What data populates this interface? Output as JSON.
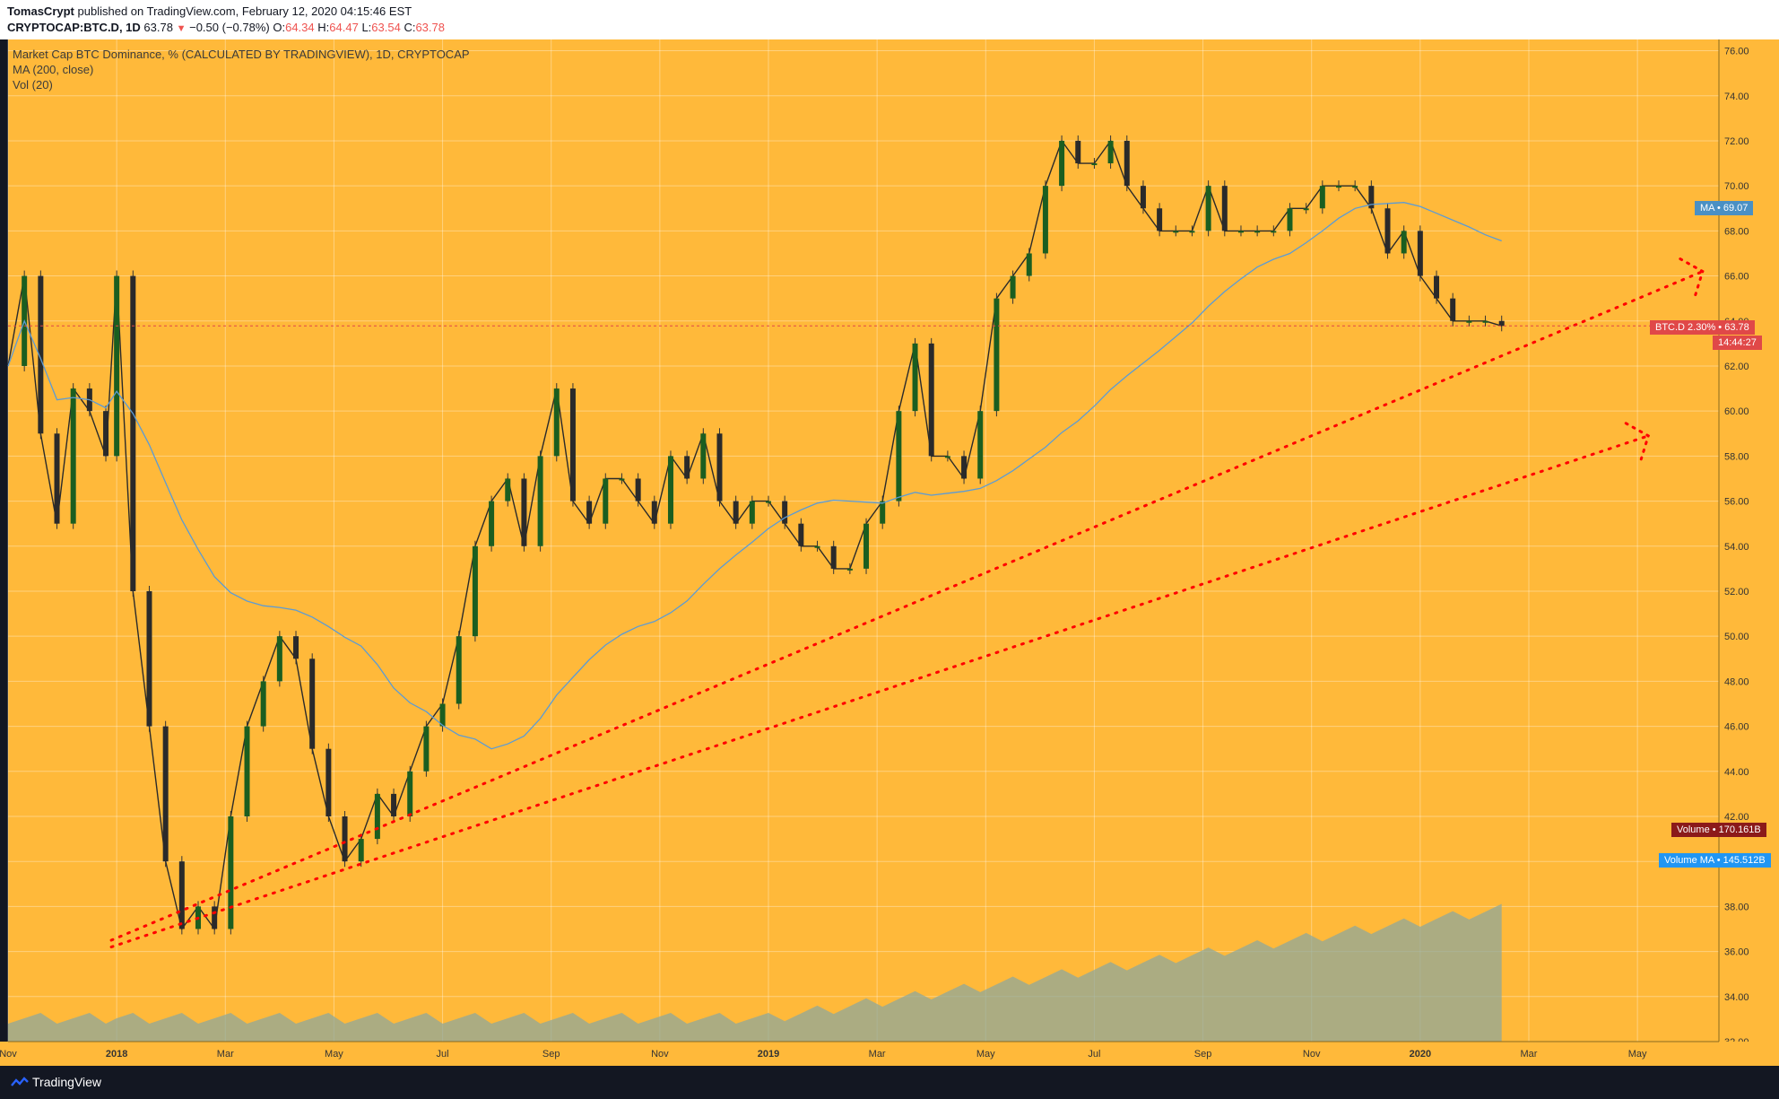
{
  "header": {
    "author": "TomasCrypt",
    "published": "published on TradingView.com, February 12, 2020 04:15:46 EST",
    "symbol": "CRYPTOCAP:BTC.D, 1D",
    "last": "63.78",
    "change": "−0.50 (−0.78%)",
    "o_label": "O:",
    "o_val": "64.34",
    "h_label": "H:",
    "h_val": "64.47",
    "l_label": "L:",
    "l_val": "63.54",
    "c_label": "C:",
    "c_val": "63.78"
  },
  "legend": {
    "line1": "Market Cap BTC Dominance, % (CALCULATED BY TRADINGVIEW), 1D, CRYPTOCAP",
    "line2": "MA (200, close)",
    "line3": "Vol (20)"
  },
  "tags": {
    "ma": "MA • 69.07",
    "btcd": "BTC.D 2.30% • 63.78",
    "countdown": "14:44:27",
    "volume": "Volume • 170.161B",
    "volume_ma": "Volume MA • 145.512B"
  },
  "footer": {
    "brand": "TradingView"
  },
  "colors": {
    "background": "#ffb93a",
    "up": "#1b5e20",
    "down": "#2a2a2a",
    "ma": "#5b9bd5",
    "trend": "#ff0000",
    "volume": "#8fa89b"
  },
  "chart_data": {
    "type": "line",
    "title": "Market Cap BTC Dominance, % (CALCULATED BY TRADINGVIEW), 1D, CRYPTOCAP",
    "ylim": [
      32,
      76.5
    ],
    "y_ticks": [
      "76.00",
      "74.00",
      "72.00",
      "70.00",
      "68.00",
      "66.00",
      "64.00",
      "62.00",
      "60.00",
      "58.00",
      "56.00",
      "54.00",
      "52.00",
      "50.00",
      "48.00",
      "46.00",
      "44.00",
      "42.00",
      "40.00",
      "38.00",
      "36.00",
      "34.00",
      "32.00"
    ],
    "x_ticks": [
      "Nov",
      "2018",
      "Mar",
      "May",
      "Jul",
      "Sep",
      "Nov",
      "2019",
      "Mar",
      "May",
      "Jul",
      "Sep",
      "Nov",
      "2020",
      "Mar",
      "May"
    ],
    "x_tick_months": [
      0,
      2,
      4,
      6,
      8,
      10,
      12,
      14,
      16,
      18,
      20,
      22,
      24,
      26,
      28,
      30
    ],
    "x_month_range": [
      0,
      31.5
    ],
    "series": [
      {
        "values_month": [
          0,
          0.3,
          0.6,
          0.9,
          1.2,
          1.5,
          1.8,
          2.0,
          2.3,
          2.6,
          2.9,
          3.2,
          3.5,
          3.8,
          4.1,
          4.4,
          4.7,
          5.0,
          5.3,
          5.6,
          5.9,
          6.2,
          6.5,
          6.8,
          7.1,
          7.4,
          7.7,
          8.0,
          8.3,
          8.6,
          8.9,
          9.2,
          9.5,
          9.8,
          10.1,
          10.4,
          10.7,
          11.0,
          11.3,
          11.6,
          11.9,
          12.2,
          12.5,
          12.8,
          13.1,
          13.4,
          13.7,
          14.0,
          14.3,
          14.6,
          14.9,
          15.2,
          15.5,
          15.8,
          16.1,
          16.4,
          16.7,
          17.0,
          17.3,
          17.6,
          17.9,
          18.2,
          18.5,
          18.8,
          19.1,
          19.4,
          19.7,
          20.0,
          20.3,
          20.6,
          20.9,
          21.2,
          21.5,
          21.8,
          22.1,
          22.4,
          22.7,
          23.0,
          23.3,
          23.6,
          23.9,
          24.2,
          24.5,
          24.8,
          25.1,
          25.4,
          25.7,
          26.0,
          26.3,
          26.6,
          26.9,
          27.2,
          27.5
        ],
        "values": [
          62,
          66,
          59,
          55,
          61,
          60,
          58,
          66,
          52,
          46,
          40,
          37,
          38,
          37,
          42,
          46,
          48,
          50,
          49,
          45,
          42,
          40,
          41,
          43,
          42,
          44,
          46,
          47,
          50,
          54,
          56,
          57,
          54,
          58,
          61,
          56,
          55,
          57,
          57,
          56,
          55,
          58,
          57,
          59,
          56,
          55,
          56,
          56,
          55,
          54,
          54,
          53,
          53,
          55,
          56,
          60,
          63,
          58,
          58,
          57,
          60,
          65,
          66,
          67,
          70,
          72,
          71,
          71,
          72,
          70,
          69,
          68,
          68,
          68,
          70,
          68,
          68,
          68,
          68,
          69,
          69,
          70,
          70,
          70,
          69,
          67,
          68,
          66,
          65,
          64,
          64,
          64,
          63.78
        ]
      }
    ]
  }
}
